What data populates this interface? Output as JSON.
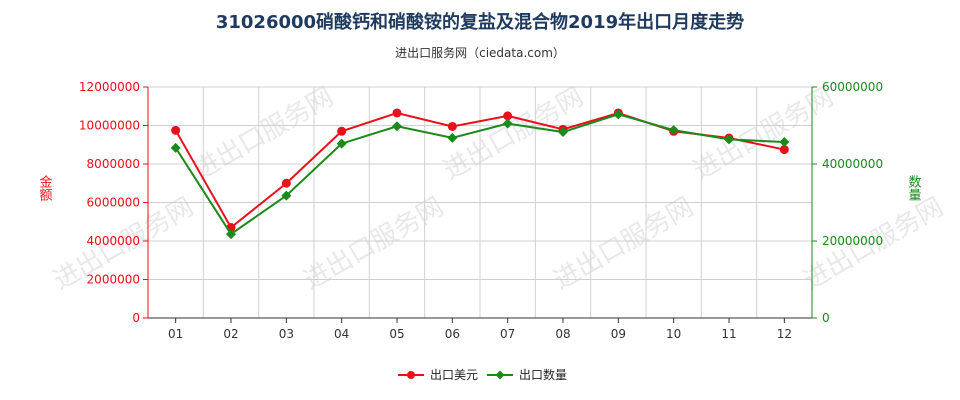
{
  "chart_data": {
    "type": "line",
    "title": "31026000硝酸钙和硝酸铵的复盐及混合物2019年出口月度走势",
    "subtitle": "进出口服务网（ciedata.com）",
    "watermark": "进出口服务网",
    "categories": [
      "01",
      "02",
      "03",
      "04",
      "05",
      "06",
      "07",
      "08",
      "09",
      "10",
      "11",
      "12"
    ],
    "y_left": {
      "label": "金额",
      "ylim": [
        0,
        12000000
      ],
      "ticks": [
        "0",
        "2000000",
        "4000000",
        "6000000",
        "8000000",
        "10000000",
        "12000000"
      ],
      "color": "#e8101a"
    },
    "y_right": {
      "label": "数量",
      "ylim": [
        0,
        60000000
      ],
      "ticks": [
        "0",
        "20000000",
        "40000000",
        "60000000"
      ],
      "color": "#1a8a1a"
    },
    "series": [
      {
        "name": "出口美元",
        "axis": "left",
        "color": "#e8101a",
        "values": [
          9750000,
          4700000,
          7000000,
          9700000,
          10650000,
          9950000,
          10500000,
          9800000,
          10650000,
          9700000,
          9350000,
          8750000
        ]
      },
      {
        "name": "出口数量",
        "axis": "right",
        "color": "#1a8a1a",
        "values": [
          44200000,
          21800000,
          31800000,
          45300000,
          49800000,
          46800000,
          50500000,
          48300000,
          52900000,
          48800000,
          46400000,
          45700000
        ]
      }
    ],
    "grid": true,
    "legend": "bottom-center"
  }
}
